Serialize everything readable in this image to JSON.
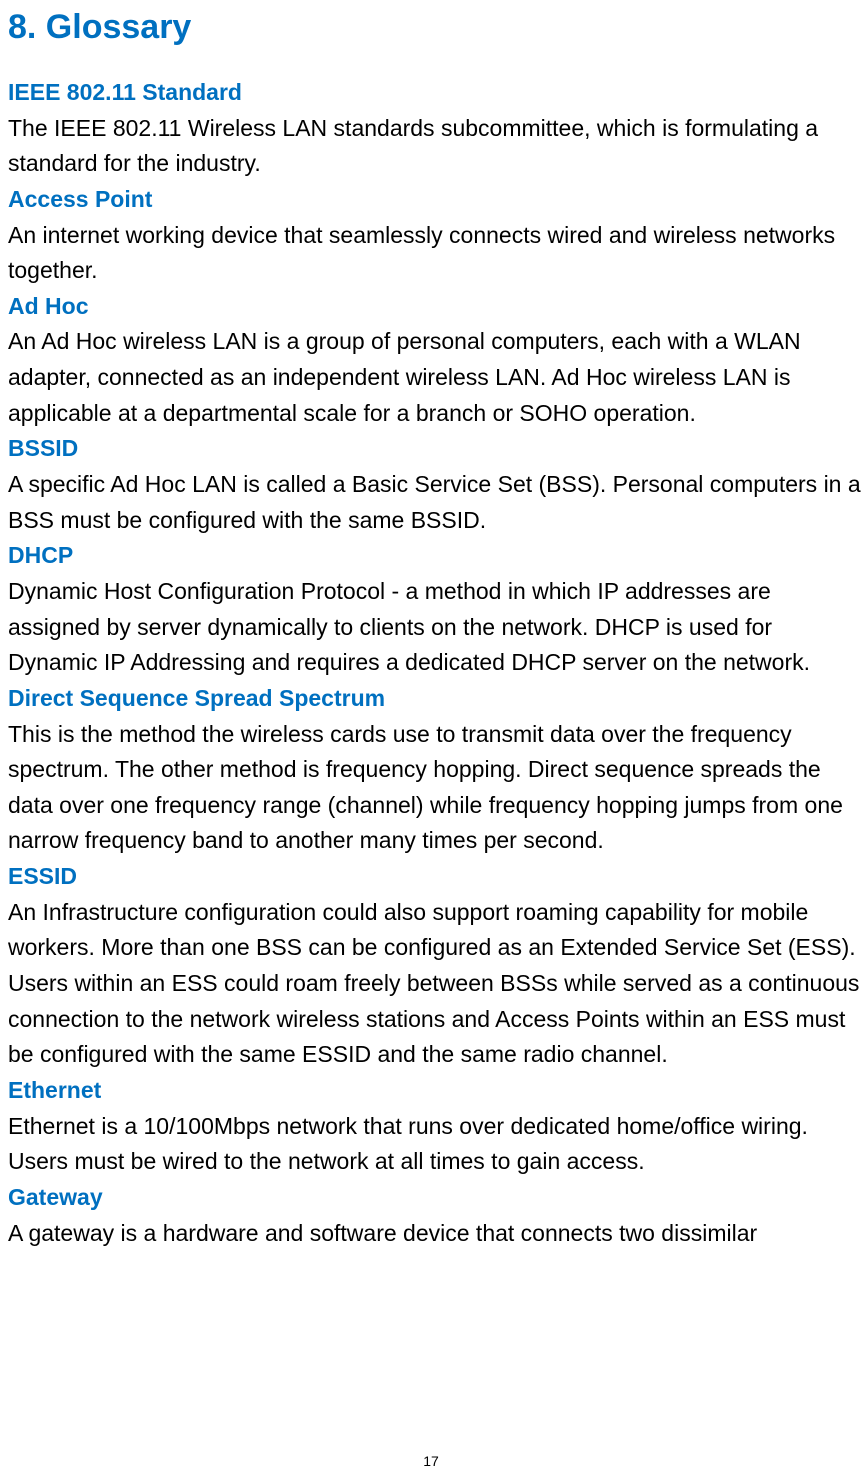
{
  "title": "8. Glossary",
  "pageNumber": "17",
  "entries": [
    {
      "term": "IEEE 802.11 Standard",
      "definition": "The IEEE 802.11 Wireless LAN standards subcommittee, which is formulating a standard for the industry."
    },
    {
      "term": "Access Point",
      "definition": "An internet working device that seamlessly connects wired and wireless networks together."
    },
    {
      "term": "Ad Hoc",
      "definition": "An Ad Hoc wireless LAN is a group of personal computers, each with a WLAN adapter, connected as an independent wireless LAN. Ad Hoc wireless LAN is applicable at a departmental scale for a branch or SOHO operation."
    },
    {
      "term": "BSSID",
      "definition": "A specific Ad Hoc LAN is called a Basic Service Set (BSS). Personal computers in a\nBSS must be configured with the same BSSID."
    },
    {
      "term": "DHCP",
      "definition": "Dynamic Host Configuration Protocol - a method in which IP addresses are assigned by server dynamically to clients on the network. DHCP is used for Dynamic IP Addressing and requires a dedicated DHCP server on the network."
    },
    {
      "term": "Direct Sequence Spread Spectrum",
      "definition": "This is the method the wireless cards use to transmit data over the frequency spectrum. The other method is frequency hopping. Direct sequence spreads the data over one frequency range (channel) while frequency hopping jumps from one narrow frequency band to another many\ntimes per second."
    },
    {
      "term": "ESSID",
      "definition": "An Infrastructure configuration could also support roaming capability for mobile workers. More than one BSS can be configured as an Extended Service Set (ESS). Users within an ESS could roam freely between BSSs while served as a continuous connection to the network wireless stations and Access Points within an ESS must be configured with the same ESSID and the same radio channel."
    },
    {
      "term": "Ethernet",
      "definition": "Ethernet is a 10/100Mbps network that runs over dedicated home/office wiring. Users must be wired to the network at all times to gain access."
    },
    {
      "term": "Gateway",
      "definition": "A gateway is a hardware and software device that connects two dissimilar"
    }
  ],
  "colors": {
    "accent": "#0070c0",
    "body": "#000000",
    "background": "#ffffff"
  },
  "typography": {
    "title_fontsize": 34,
    "body_fontsize": 23,
    "line_height": 1.55,
    "font_family": "Arial"
  }
}
